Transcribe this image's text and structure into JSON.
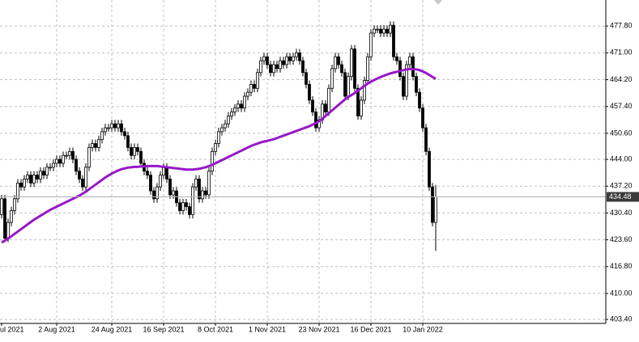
{
  "chart_data": {
    "type": "candlestick",
    "categories": [
      "ul 2021",
      null,
      null,
      null,
      null,
      null,
      null,
      null,
      null,
      null,
      null,
      null,
      null,
      null,
      null,
      null,
      null,
      "2 Aug 2021",
      null,
      null,
      null,
      null,
      null,
      null,
      null,
      null,
      null,
      null,
      null,
      null,
      null,
      null,
      null,
      null,
      "24 Aug 2021",
      null,
      null,
      null,
      null,
      null,
      null,
      null,
      null,
      null,
      null,
      null,
      null,
      null,
      null,
      null,
      "16 Sep 2021",
      null,
      null,
      null,
      null,
      null,
      null,
      null,
      null,
      null,
      null,
      null,
      null,
      null,
      null,
      null,
      "8 Oct 2021",
      null,
      null,
      null,
      null,
      null,
      null,
      null,
      null,
      null,
      null,
      null,
      null,
      null,
      null,
      null,
      "1 Nov 2021",
      null,
      null,
      null,
      null,
      null,
      null,
      null,
      null,
      null,
      null,
      null,
      null,
      null,
      null,
      null,
      "23 Nov 2021",
      null,
      null,
      null,
      null,
      null,
      null,
      null,
      null,
      null,
      null,
      null,
      null,
      null,
      null,
      null,
      "16 Dec 2021",
      null,
      null,
      null,
      null,
      null,
      null,
      null,
      null,
      null,
      null,
      null,
      null,
      null,
      null,
      null,
      "10 Jan 2022",
      null,
      null,
      null,
      null
    ],
    "open": [
      430,
      434,
      424,
      428,
      431,
      434,
      438,
      437,
      439,
      440,
      438,
      440,
      439,
      441,
      440,
      442,
      442,
      443,
      444,
      443,
      445,
      445,
      446,
      444,
      441,
      439,
      437,
      442,
      447,
      448,
      447,
      449,
      451,
      452,
      452,
      453,
      452,
      453,
      451,
      450,
      447,
      445,
      447,
      446,
      443,
      441,
      440,
      436,
      434,
      437,
      440,
      442,
      439,
      435,
      436,
      433,
      431,
      433,
      432,
      430,
      437,
      439,
      434,
      436,
      435,
      441,
      446,
      448,
      451,
      452,
      453,
      455,
      456,
      457,
      458,
      457,
      460,
      461,
      463,
      462,
      466,
      469,
      470,
      468,
      466,
      468,
      467,
      469,
      468,
      470,
      469,
      470,
      471,
      469,
      466,
      463,
      459,
      456,
      452,
      454,
      458,
      456,
      462,
      467,
      470,
      468,
      466,
      460,
      465,
      472,
      462,
      455,
      459,
      464,
      470,
      476,
      477,
      477,
      476,
      477,
      476,
      478,
      470,
      469,
      465,
      460,
      468,
      470,
      465,
      461,
      457,
      452,
      446,
      437,
      428
    ],
    "high": [
      435,
      435,
      429,
      432,
      435,
      439,
      439,
      440,
      441,
      441,
      441,
      441,
      442,
      442,
      443,
      443,
      444,
      445,
      445,
      446,
      446,
      447,
      447,
      445,
      442,
      440,
      443,
      448,
      449,
      449,
      450,
      452,
      453,
      453,
      454,
      454,
      454,
      454,
      452,
      451,
      448,
      448,
      448,
      447,
      444,
      442,
      441,
      437,
      438,
      441,
      443,
      443,
      440,
      437,
      437,
      434,
      434,
      434,
      433,
      438,
      440,
      440,
      437,
      437,
      442,
      447,
      449,
      452,
      453,
      454,
      456,
      457,
      458,
      459,
      459,
      461,
      462,
      464,
      464,
      467,
      470,
      471,
      471,
      469,
      469,
      469,
      470,
      470,
      471,
      471,
      471,
      472,
      472,
      470,
      467,
      464,
      460,
      457,
      455,
      459,
      459,
      463,
      468,
      471,
      471,
      469,
      467,
      466,
      473,
      473,
      463,
      460,
      465,
      471,
      477,
      478,
      478,
      478,
      478,
      478,
      479,
      479,
      471,
      470,
      466,
      469,
      471,
      471,
      466,
      462,
      458,
      453,
      447,
      438,
      437.5
    ],
    "low": [
      429,
      423,
      423,
      427,
      430,
      433,
      436,
      436,
      438,
      437,
      437,
      438,
      438,
      439,
      439,
      441,
      441,
      442,
      442,
      442,
      444,
      444,
      443,
      440,
      438,
      436,
      436,
      441,
      446,
      446,
      446,
      448,
      450,
      451,
      451,
      451,
      451,
      450,
      449,
      446,
      444,
      444,
      445,
      442,
      440,
      439,
      435,
      433,
      433,
      436,
      439,
      438,
      434,
      434,
      432,
      430,
      430,
      431,
      429,
      429,
      436,
      433,
      433,
      434,
      434,
      440,
      445,
      447,
      450,
      451,
      452,
      454,
      455,
      456,
      456,
      456,
      459,
      460,
      461,
      461,
      465,
      468,
      467,
      465,
      465,
      466,
      466,
      467,
      467,
      468,
      468,
      469,
      468,
      465,
      462,
      458,
      455,
      451,
      451,
      453,
      455,
      455,
      461,
      466,
      467,
      465,
      459,
      459,
      464,
      461,
      454,
      454,
      458,
      463,
      469,
      475,
      476,
      475,
      475,
      475,
      475,
      469,
      468,
      464,
      459,
      459,
      467,
      464,
      460,
      456,
      451,
      445,
      436,
      427,
      420.8
    ],
    "close": [
      434,
      424,
      428,
      431,
      434,
      438,
      437,
      439,
      440,
      438,
      440,
      439,
      441,
      440,
      442,
      442,
      443,
      444,
      443,
      445,
      445,
      446,
      444,
      441,
      439,
      437,
      442,
      447,
      448,
      447,
      449,
      451,
      452,
      452,
      453,
      452,
      453,
      451,
      450,
      447,
      445,
      447,
      446,
      443,
      441,
      440,
      436,
      434,
      437,
      440,
      442,
      439,
      435,
      436,
      433,
      431,
      433,
      432,
      430,
      437,
      439,
      434,
      436,
      435,
      441,
      446,
      448,
      451,
      452,
      453,
      455,
      456,
      457,
      458,
      457,
      460,
      461,
      463,
      462,
      466,
      469,
      470,
      468,
      466,
      468,
      467,
      469,
      468,
      470,
      469,
      470,
      471,
      469,
      466,
      463,
      459,
      456,
      452,
      454,
      458,
      456,
      462,
      467,
      470,
      468,
      466,
      460,
      465,
      472,
      462,
      455,
      459,
      464,
      470,
      476,
      477,
      477,
      476,
      477,
      476,
      478,
      470,
      469,
      465,
      460,
      468,
      470,
      465,
      461,
      457,
      452,
      446,
      437,
      428,
      434.48
    ],
    "ma_values": [
      422.9,
      423.4,
      423.9,
      424.5,
      425.1,
      425.7,
      426.3,
      426.9,
      427.5,
      428.1,
      428.7,
      429.2,
      429.7,
      430.2,
      430.7,
      431.2,
      431.6,
      432.0,
      432.4,
      432.8,
      433.2,
      433.6,
      434.0,
      434.4,
      434.8,
      435.3,
      435.8,
      436.4,
      437.0,
      437.6,
      438.2,
      438.8,
      439.4,
      439.9,
      440.4,
      440.8,
      441.2,
      441.5,
      441.7,
      441.9,
      442.0,
      442.1,
      442.1,
      442.2,
      442.2,
      442.3,
      442.3,
      442.3,
      442.3,
      442.2,
      442.1,
      442.0,
      441.9,
      441.8,
      441.7,
      441.6,
      441.5,
      441.4,
      441.4,
      441.4,
      441.5,
      441.6,
      441.8,
      442.0,
      442.3,
      442.6,
      443.0,
      443.4,
      443.8,
      444.2,
      444.6,
      445.0,
      445.4,
      445.8,
      446.2,
      446.6,
      447.0,
      447.4,
      447.7,
      448.0,
      448.3,
      448.5,
      448.7,
      448.9,
      449.1,
      449.4,
      449.7,
      450.0,
      450.3,
      450.6,
      450.9,
      451.2,
      451.5,
      451.8,
      452.1,
      452.4,
      452.8,
      453.2,
      453.7,
      454.3,
      455.0,
      455.7,
      456.4,
      457.1,
      457.8,
      458.5,
      459.2,
      459.8,
      460.3,
      460.8,
      461.4,
      462.0,
      462.6,
      463.2,
      463.7,
      464.1,
      464.5,
      464.9,
      465.2,
      465.5,
      465.8,
      466.0,
      466.2,
      466.4,
      466.6,
      466.8,
      466.9,
      466.9,
      466.8,
      466.6,
      466.3,
      465.9,
      465.4,
      464.9,
      464.4
    ],
    "ma_color": "#9618c8",
    "bull_color": "#ffffff",
    "bear_color": "#000000",
    "ylim": [
      402.4,
      484.4
    ],
    "yticks": [
      {
        "value": 403.4,
        "label": "403.40"
      },
      {
        "value": 410,
        "label": "410.00"
      },
      {
        "value": 416.8,
        "label": "416.80"
      },
      {
        "value": 423.6,
        "label": "423.60"
      },
      {
        "value": 430.4,
        "label": "430.40"
      },
      {
        "value": 437.2,
        "label": "437.20"
      },
      {
        "value": 444,
        "label": "444.00"
      },
      {
        "value": 450.6,
        "label": "450.60"
      },
      {
        "value": 457.4,
        "label": "457.40"
      },
      {
        "value": 464.2,
        "label": "464.20"
      },
      {
        "value": 471,
        "label": "471.00"
      },
      {
        "value": 477.8,
        "label": "477.80"
      }
    ],
    "grid": true
  }
}
